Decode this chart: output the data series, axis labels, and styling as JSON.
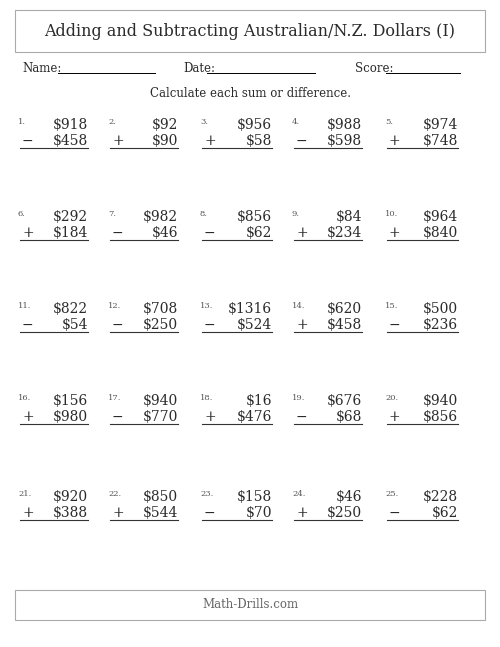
{
  "title": "Adding and Subtracting Australian/N.Z. Dollars (I)",
  "instruction": "Calculate each sum or difference.",
  "footer": "Math-Drills.com",
  "problems": [
    {
      "num": 1,
      "top": "$918",
      "op": "−",
      "bot": "$458"
    },
    {
      "num": 2,
      "top": "$92",
      "op": "+",
      "bot": "$90"
    },
    {
      "num": 3,
      "top": "$956",
      "op": "+",
      "bot": "$58"
    },
    {
      "num": 4,
      "top": "$988",
      "op": "−",
      "bot": "$598"
    },
    {
      "num": 5,
      "top": "$974",
      "op": "+",
      "bot": "$748"
    },
    {
      "num": 6,
      "top": "$292",
      "op": "+",
      "bot": "$184"
    },
    {
      "num": 7,
      "top": "$982",
      "op": "−",
      "bot": "$46"
    },
    {
      "num": 8,
      "top": "$856",
      "op": "−",
      "bot": "$62"
    },
    {
      "num": 9,
      "top": "$84",
      "op": "+",
      "bot": "$234"
    },
    {
      "num": 10,
      "top": "$964",
      "op": "+",
      "bot": "$840"
    },
    {
      "num": 11,
      "top": "$822",
      "op": "−",
      "bot": "$54"
    },
    {
      "num": 12,
      "top": "$708",
      "op": "−",
      "bot": "$250"
    },
    {
      "num": 13,
      "top": "$1316",
      "op": "−",
      "bot": "$524"
    },
    {
      "num": 14,
      "top": "$620",
      "op": "+",
      "bot": "$458"
    },
    {
      "num": 15,
      "top": "$500",
      "op": "−",
      "bot": "$236"
    },
    {
      "num": 16,
      "top": "$156",
      "op": "+",
      "bot": "$980"
    },
    {
      "num": 17,
      "top": "$940",
      "op": "−",
      "bot": "$770"
    },
    {
      "num": 18,
      "top": "$16",
      "op": "+",
      "bot": "$476"
    },
    {
      "num": 19,
      "top": "$676",
      "op": "−",
      "bot": "$68"
    },
    {
      "num": 20,
      "top": "$940",
      "op": "+",
      "bot": "$856"
    },
    {
      "num": 21,
      "top": "$920",
      "op": "+",
      "bot": "$388"
    },
    {
      "num": 22,
      "top": "$850",
      "op": "+",
      "bot": "$544"
    },
    {
      "num": 23,
      "top": "$158",
      "op": "−",
      "bot": "$70"
    },
    {
      "num": 24,
      "top": "$46",
      "op": "+",
      "bot": "$250"
    },
    {
      "num": 25,
      "top": "$228",
      "op": "−",
      "bot": "$62"
    }
  ],
  "bg_color": "#ffffff",
  "text_color": "#2b2b2b",
  "line_color": "#333333",
  "border_color": "#aaaaaa",
  "title_fontsize": 11.5,
  "label_fontsize": 6,
  "problem_fontsize": 10,
  "op_fontsize": 10,
  "header_fontsize": 8.5,
  "instruction_fontsize": 8.5,
  "footer_fontsize": 8.5
}
